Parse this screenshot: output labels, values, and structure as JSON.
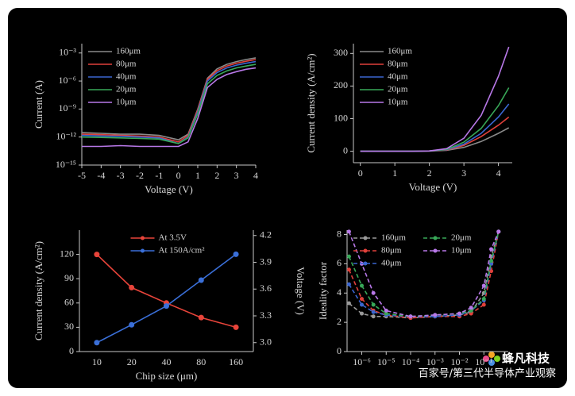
{
  "chart_data": [
    {
      "type": "line",
      "xlabel": "Voltage (V)",
      "ylabel": "Current (A)",
      "ylog": true,
      "x": [
        -5,
        -4,
        -3,
        -2,
        -1,
        0,
        0.5,
        1,
        1.5,
        2,
        2.5,
        3,
        3.5,
        4
      ],
      "xlim": [
        -5,
        4
      ],
      "xticks": [
        -5,
        -4,
        -3,
        -2,
        -1,
        0,
        1,
        2,
        3,
        4
      ],
      "ylim": [
        1e-15,
        0.01
      ],
      "yticks": [
        {
          "value": 0.001,
          "label": "10⁻³"
        },
        {
          "value": 1e-06,
          "label": "10⁻⁶"
        },
        {
          "value": 1e-09,
          "label": "10⁻⁹"
        },
        {
          "value": 1e-12,
          "label": "10⁻¹²"
        },
        {
          "value": 1e-15,
          "label": "10⁻¹⁵"
        }
      ],
      "legend": "upper left",
      "series": [
        {
          "name": "160μm",
          "color": "#8a8a8a",
          "values": [
            3e-12,
            2.5e-12,
            2e-12,
            2e-12,
            1.5e-12,
            5e-13,
            2e-12,
            1e-09,
            2e-06,
            2e-05,
            6e-05,
            0.00012,
            0.0002,
            0.0003
          ]
        },
        {
          "name": "80μm",
          "color": "#e0403a",
          "values": [
            2e-12,
            1.8e-12,
            1.5e-12,
            1.3e-12,
            1e-12,
            3e-13,
            1.5e-12,
            8e-10,
            1.5e-06,
            1.3e-05,
            4e-05,
            8e-05,
            0.00013,
            0.0002
          ]
        },
        {
          "name": "40μm",
          "color": "#3a66d0",
          "values": [
            1.5e-12,
            1.3e-12,
            1.2e-12,
            1e-12,
            8e-13,
            2e-13,
            1e-12,
            5e-10,
            1e-06,
            8e-06,
            2.5e-05,
            5e-05,
            8e-05,
            0.00012
          ]
        },
        {
          "name": "20μm",
          "color": "#38a858",
          "values": [
            1e-12,
            9e-13,
            8e-13,
            7e-13,
            6e-13,
            2e-13,
            8e-13,
            3e-10,
            5e-07,
            4e-06,
            1.2e-05,
            2.5e-05,
            4e-05,
            6e-05
          ]
        },
        {
          "name": "10μm",
          "color": "#b878e8",
          "values": [
            1e-13,
            1e-13,
            1.2e-13,
            1e-13,
            1e-13,
            1e-13,
            3e-13,
            1e-10,
            2e-07,
            1.5e-06,
            5e-06,
            1e-05,
            1.8e-05,
            2.5e-05
          ]
        }
      ]
    },
    {
      "type": "line",
      "xlabel": "Voltage (V)",
      "ylabel": "Current density (A/cm²)",
      "x": [
        0,
        0.5,
        1,
        1.5,
        2,
        2.5,
        3,
        3.5,
        4,
        4.3
      ],
      "xlim": [
        -0.2,
        4.4
      ],
      "xticks": [
        0,
        1,
        2,
        3,
        4
      ],
      "ylim": [
        -35,
        330
      ],
      "yticks": [
        0,
        100,
        200,
        300
      ],
      "legend": "upper left",
      "series": [
        {
          "name": "160μm",
          "color": "#8a8a8a",
          "values": [
            0,
            0,
            0,
            0,
            0.5,
            3,
            12,
            30,
            55,
            72
          ]
        },
        {
          "name": "80μm",
          "color": "#e0403a",
          "values": [
            0,
            0,
            0,
            0,
            1,
            4,
            18,
            45,
            80,
            105
          ]
        },
        {
          "name": "40μm",
          "color": "#3a66d0",
          "values": [
            0,
            0,
            0,
            0,
            1,
            5,
            22,
            55,
            105,
            145
          ]
        },
        {
          "name": "20μm",
          "color": "#38a858",
          "values": [
            0,
            0,
            0,
            0,
            1,
            6,
            28,
            70,
            140,
            195
          ]
        },
        {
          "name": "10μm",
          "color": "#b878e8",
          "values": [
            0,
            0,
            0,
            0,
            1,
            8,
            40,
            110,
            230,
            320
          ]
        }
      ]
    },
    {
      "type": "line",
      "xlabel": "Chip size (μm)",
      "ylabel": "Current density (A/cm²)",
      "y2label": "Voltage (V)",
      "categories": [
        "10",
        "20",
        "40",
        "80",
        "160"
      ],
      "ylim": [
        0,
        150
      ],
      "yticks": [
        0,
        30,
        60,
        90,
        120
      ],
      "y2lim": [
        2.9,
        4.26
      ],
      "y2ticks": [
        {
          "value": 3,
          "label": "3.0"
        },
        3.3,
        3.6,
        3.9,
        4.2
      ],
      "legend": "upper center",
      "markers": true,
      "series": [
        {
          "name": "At 3.5V",
          "color": "#e8443a",
          "values": [
            120,
            79,
            60,
            42,
            30
          ]
        },
        {
          "name": "At 150A/cm²",
          "color": "#3a6fd8",
          "axis": "y2",
          "values": [
            3.0,
            3.2,
            3.41,
            3.7,
            3.99
          ]
        }
      ]
    },
    {
      "type": "line",
      "ylabel": "Ideality factor",
      "xlog": true,
      "x": [
        3e-07,
        1e-06,
        3e-06,
        1e-05,
        0.0001,
        0.001,
        0.01,
        0.03,
        0.1,
        0.2,
        0.4
      ],
      "xlim": [
        2.5e-07,
        1
      ],
      "xticks": [
        {
          "value": 1e-06,
          "label": "10⁻⁶"
        },
        {
          "value": 1e-05,
          "label": "10⁻⁵"
        },
        {
          "value": 0.0001,
          "label": "10⁻⁴"
        },
        {
          "value": 0.001,
          "label": "10⁻³"
        },
        {
          "value": 0.01,
          "label": "10⁻²"
        },
        {
          "value": 0.1,
          "label": "10⁻¹"
        }
      ],
      "ylim": [
        0,
        8.3
      ],
      "yticks": [
        0,
        2,
        4,
        6,
        8
      ],
      "legend": "upper left",
      "legend_columns": 2,
      "markers": true,
      "line_style": "dashed",
      "series": [
        {
          "name": "160μm",
          "color": "#9a9a9a",
          "values": [
            3.3,
            2.6,
            2.4,
            2.4,
            2.3,
            2.4,
            2.5,
            2.7,
            4.0,
            6.5,
            8.2
          ]
        },
        {
          "name": "80μm",
          "color": "#e0403a",
          "values": [
            5.6,
            3.6,
            2.8,
            2.5,
            2.3,
            2.4,
            2.4,
            2.6,
            3.2,
            5.5,
            8.2
          ]
        },
        {
          "name": "40μm",
          "color": "#3a66d0",
          "values": [
            4.6,
            3.2,
            2.7,
            2.5,
            2.4,
            2.4,
            2.5,
            2.8,
            3.5,
            6.0,
            8.2
          ]
        },
        {
          "name": "20μm",
          "color": "#38a858",
          "values": [
            6.5,
            4.5,
            3.2,
            2.6,
            2.4,
            2.5,
            2.6,
            2.8,
            3.6,
            6.2,
            8.2
          ]
        },
        {
          "name": "10μm",
          "color": "#b878e8",
          "values": [
            8.2,
            6.0,
            4.0,
            2.8,
            2.4,
            2.5,
            2.6,
            3.0,
            4.5,
            7.0,
            8.2
          ]
        }
      ]
    }
  ],
  "watermark": {
    "brand": "蜂凡科技",
    "caption": "百家号/第三代半导体产业观察"
  }
}
